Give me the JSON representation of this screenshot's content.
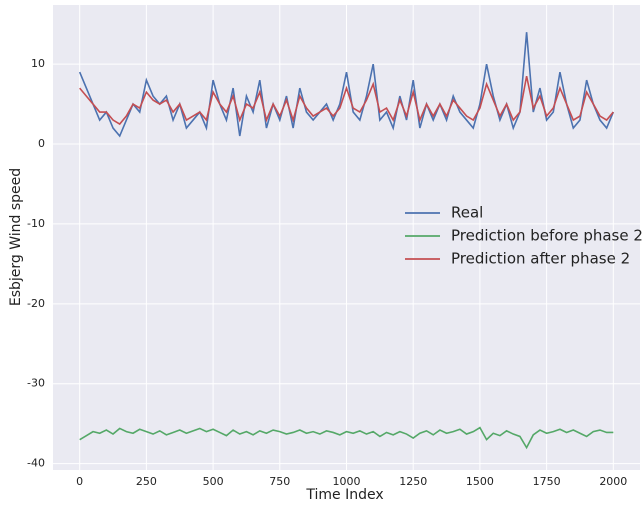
{
  "chart_data": {
    "type": "line",
    "x_label": "Time Index",
    "y_label": "Esbjerg Wind speed",
    "x": [
      0,
      25,
      50,
      75,
      100,
      125,
      150,
      175,
      200,
      225,
      250,
      275,
      300,
      325,
      350,
      375,
      400,
      425,
      450,
      475,
      500,
      525,
      550,
      575,
      600,
      625,
      650,
      675,
      700,
      725,
      750,
      775,
      800,
      825,
      850,
      875,
      900,
      925,
      950,
      975,
      1000,
      1025,
      1050,
      1075,
      1100,
      1125,
      1150,
      1175,
      1200,
      1225,
      1250,
      1275,
      1300,
      1325,
      1350,
      1375,
      1400,
      1425,
      1450,
      1475,
      1500,
      1525,
      1550,
      1575,
      1600,
      1625,
      1650,
      1675,
      1700,
      1725,
      1750,
      1775,
      1800,
      1825,
      1850,
      1875,
      1900,
      1925,
      1950,
      1975,
      2000
    ],
    "series": [
      {
        "name": "Real",
        "color": "#4c72b0",
        "values": [
          9,
          7,
          5,
          3,
          4,
          2,
          1,
          3,
          5,
          4,
          8,
          6,
          5,
          6,
          3,
          5,
          2,
          3,
          4,
          2,
          8,
          5,
          3,
          7,
          1,
          6,
          4,
          8,
          2,
          5,
          3,
          6,
          2,
          7,
          4,
          3,
          4,
          5,
          3,
          5,
          9,
          4,
          3,
          6,
          10,
          3,
          4,
          2,
          6,
          3,
          8,
          2,
          5,
          3,
          5,
          3,
          6,
          4,
          3,
          2,
          5,
          10,
          6,
          3,
          5,
          2,
          4,
          14,
          4,
          7,
          3,
          4,
          9,
          5,
          2,
          3,
          8,
          5,
          3,
          2,
          4
        ]
      },
      {
        "name": "Prediction before phase 2",
        "color": "#55a868",
        "values": [
          -37,
          -36.5,
          -36,
          -36.2,
          -35.8,
          -36.3,
          -35.6,
          -36,
          -36.2,
          -35.7,
          -36,
          -36.3,
          -35.9,
          -36.4,
          -36.1,
          -35.8,
          -36.2,
          -35.9,
          -35.6,
          -36,
          -35.7,
          -36.1,
          -36.5,
          -35.8,
          -36.3,
          -36,
          -36.4,
          -35.9,
          -36.2,
          -35.8,
          -36,
          -36.3,
          -36.1,
          -35.8,
          -36.2,
          -36,
          -36.3,
          -35.9,
          -36.1,
          -36.4,
          -36,
          -36.2,
          -35.9,
          -36.3,
          -36,
          -36.6,
          -36.1,
          -36.4,
          -36,
          -36.3,
          -36.8,
          -36.2,
          -35.9,
          -36.4,
          -35.8,
          -36.2,
          -36,
          -35.7,
          -36.3,
          -36,
          -35.5,
          -37,
          -36.2,
          -36.5,
          -35.9,
          -36.3,
          -36.6,
          -38,
          -36.4,
          -35.8,
          -36.2,
          -36,
          -35.7,
          -36.1,
          -35.8,
          -36.2,
          -36.6,
          -36,
          -35.8,
          -36.1,
          -36.1
        ]
      },
      {
        "name": "Prediction after phase 2",
        "color": "#c44e52",
        "values": [
          7,
          6,
          5,
          4,
          4,
          3,
          2.5,
          3.5,
          5,
          4.5,
          6.5,
          5.5,
          5,
          5.5,
          4,
          5,
          3,
          3.5,
          4,
          3,
          6.5,
          5,
          4,
          6,
          3,
          5,
          4.5,
          6.5,
          3,
          5,
          3.5,
          5.5,
          3,
          6,
          4.5,
          3.5,
          4,
          4.5,
          3.5,
          4.5,
          7,
          4.5,
          4,
          5.5,
          7.5,
          4,
          4.5,
          3,
          5.5,
          3.5,
          6.5,
          3,
          5,
          3.5,
          5,
          3.5,
          5.5,
          4.5,
          3.5,
          3,
          4.5,
          7.5,
          5.5,
          3.5,
          5,
          3,
          4,
          8.5,
          4.5,
          6,
          3.5,
          4.5,
          7,
          5,
          3,
          3.5,
          6.5,
          5,
          3.5,
          3,
          4
        ]
      }
    ],
    "xlim": [
      -100,
      2100
    ],
    "ylim": [
      -40.8,
      17.4
    ],
    "xticks": [
      0,
      250,
      500,
      750,
      1000,
      1250,
      1500,
      1750,
      2000
    ],
    "yticks": [
      -40,
      -30,
      -20,
      -10,
      0,
      10
    ],
    "grid": true,
    "legend": "center right"
  }
}
